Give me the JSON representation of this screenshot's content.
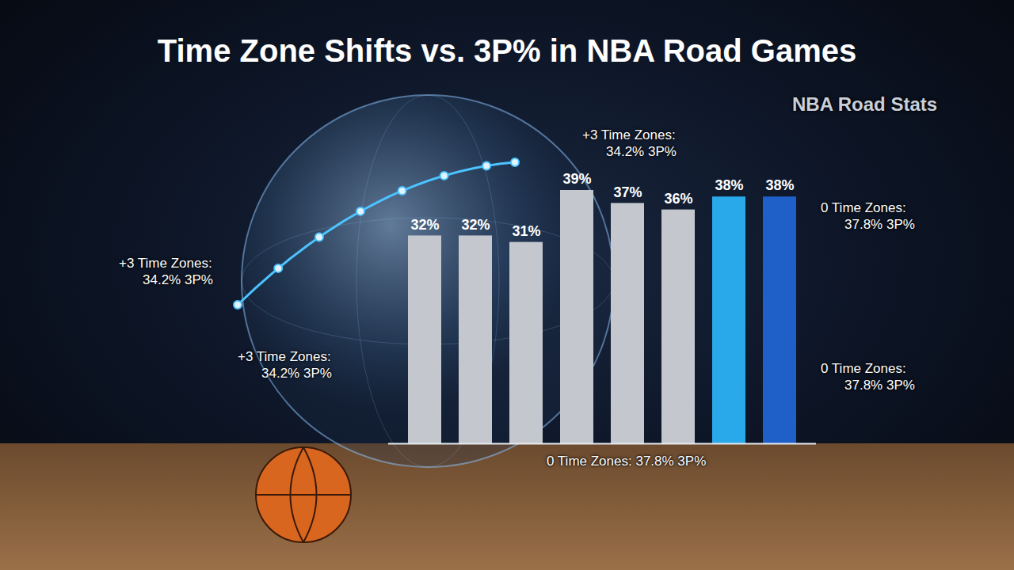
{
  "chart_data": {
    "type": "bar",
    "title": "Time Zone Shifts vs. 3P% in NBA Road Games",
    "categories": [
      null,
      null,
      null,
      null,
      null,
      null,
      null,
      null
    ],
    "values": [
      32,
      32,
      31,
      39,
      37,
      36,
      38,
      38
    ],
    "value_labels": [
      "32%",
      "32%",
      "31%",
      "39%",
      "37%",
      "36%",
      "38%",
      "38%"
    ],
    "colors": [
      "#c4c8ce",
      "#c4c8ce",
      "#c4c8ce",
      "#c4c8ce",
      "#c4c8ce",
      "#c4c8ce",
      "#29a9ea",
      "#1e5fc8"
    ],
    "data_labels": true,
    "tick_labels": false,
    "annotations": [
      "NBA Road Stats",
      "+3 Time Zones: 34.2% 3P%",
      "+3 Time Zones: 34.2% 3P%",
      "+3 Time Zones: 34.2% 3P%",
      "0 Time Zones: 37.8% 3P%",
      "0 Time Zones: 37.8% 3P%",
      "0 Time Zones: 37.8% 3P%"
    ]
  }
}
